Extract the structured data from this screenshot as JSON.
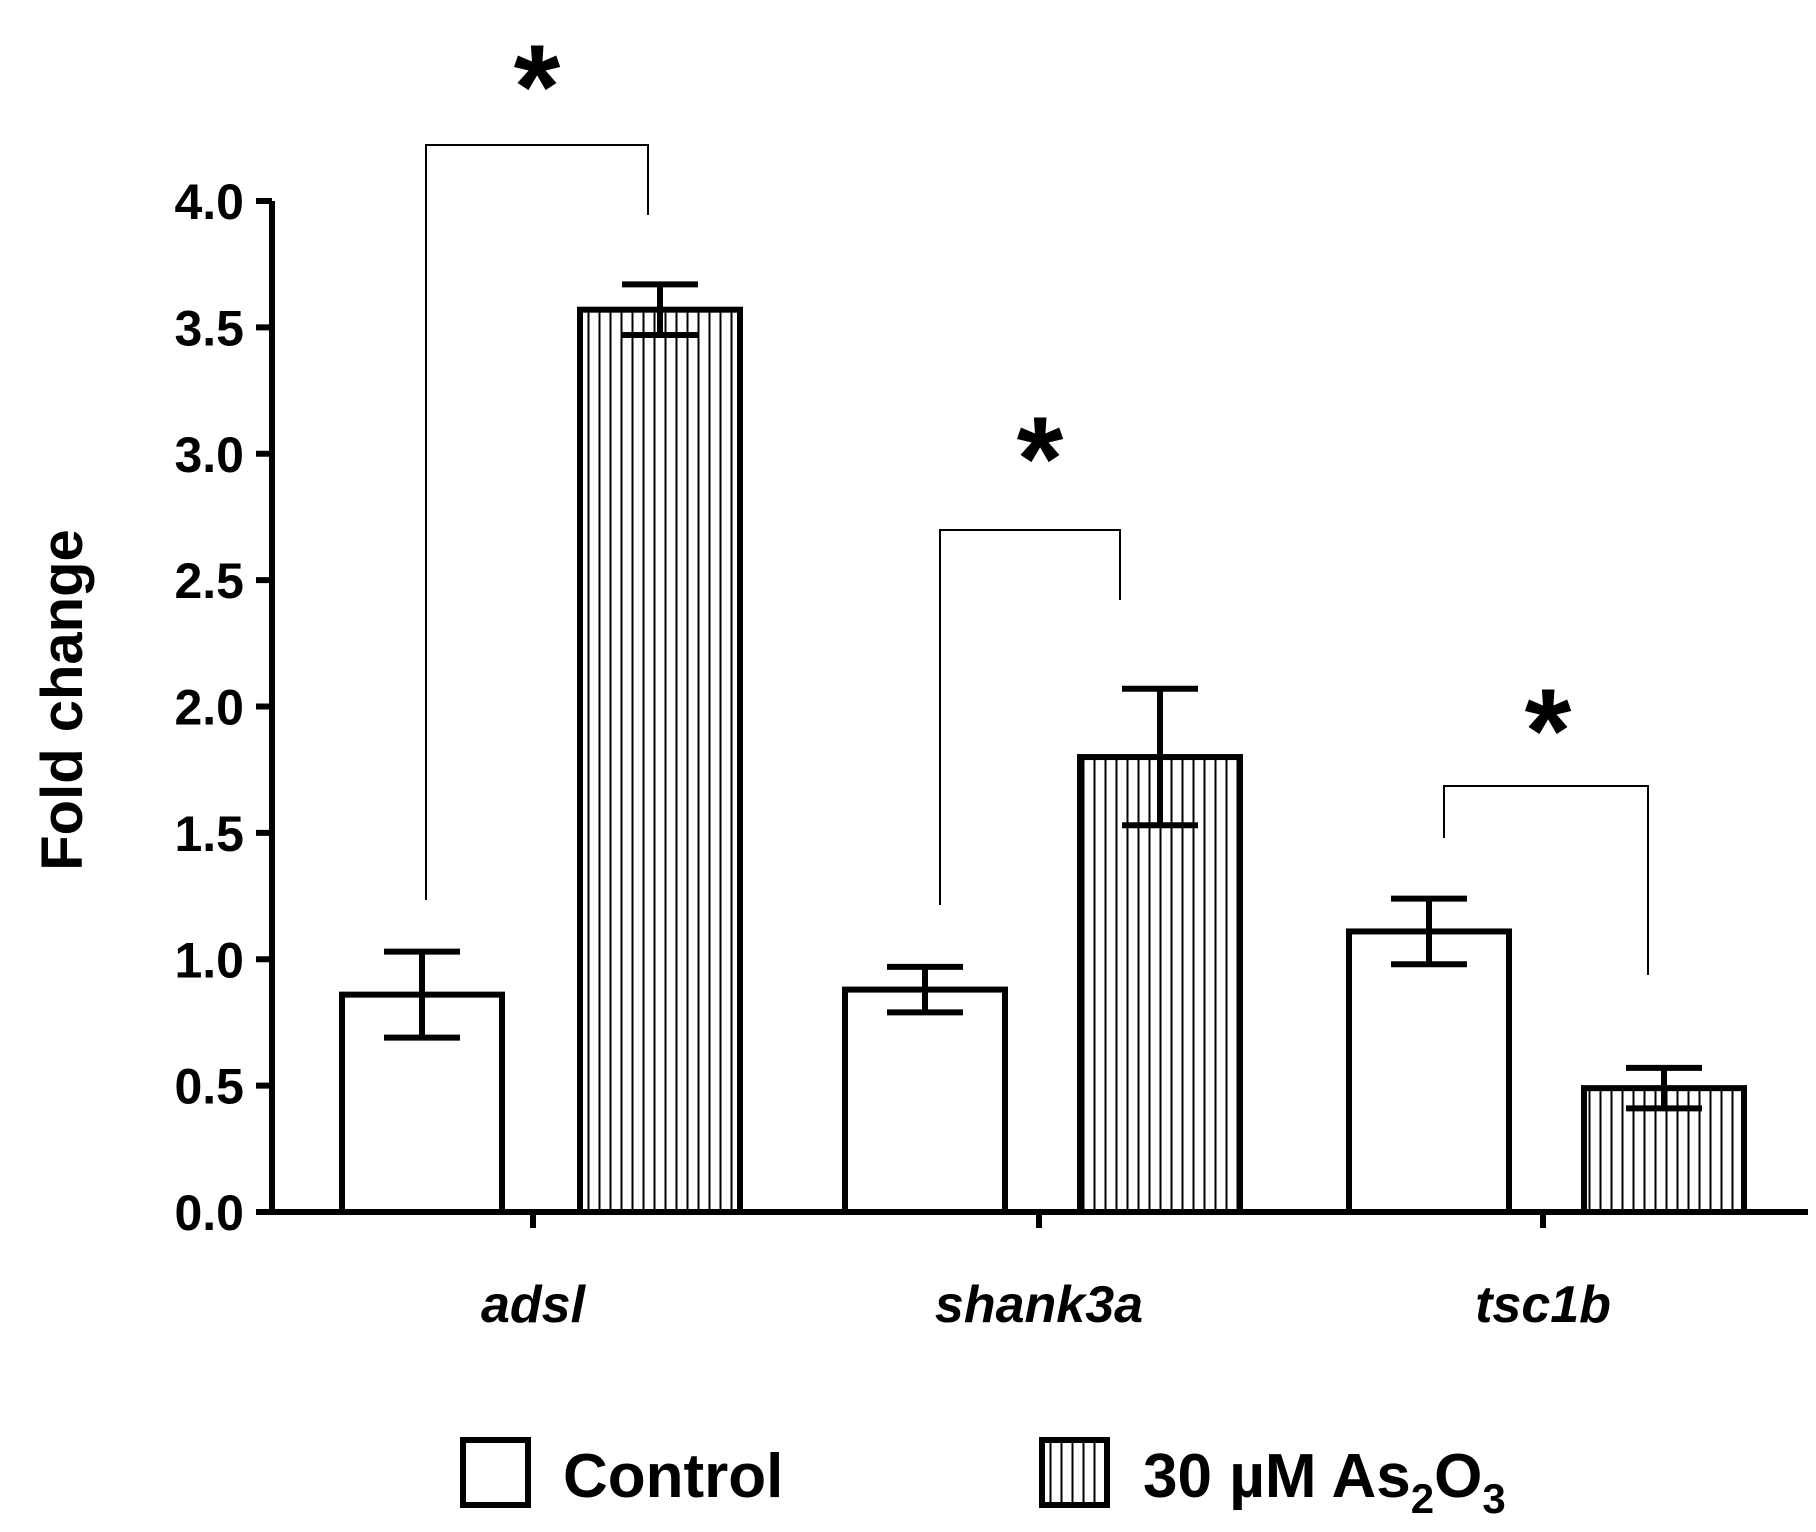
{
  "chart_data": {
    "type": "bar",
    "title": "",
    "xlabel": "",
    "ylabel": "Fold change",
    "ylim": [
      0,
      4.0
    ],
    "yticks": [
      "0.0",
      "0.5",
      "1.0",
      "1.5",
      "2.0",
      "2.5",
      "3.0",
      "3.5",
      "4.0"
    ],
    "categories": [
      "adsl",
      "shank3a",
      "tsc1b"
    ],
    "series": [
      {
        "name": "Control",
        "pattern": "open",
        "values": [
          0.86,
          0.88,
          1.11
        ],
        "errors": [
          0.17,
          0.09,
          0.13
        ]
      },
      {
        "name": "30 µM As₂O₃",
        "pattern": "vertical-stripes",
        "values": [
          3.57,
          1.8,
          0.49
        ],
        "errors": [
          0.1,
          0.27,
          0.08
        ]
      }
    ],
    "significance": [
      {
        "category": "adsl",
        "label": "*"
      },
      {
        "category": "shank3a",
        "label": "*"
      },
      {
        "category": "tsc1b",
        "label": "*"
      }
    ],
    "legend": {
      "position": "bottom",
      "items": [
        {
          "text": "Control"
        },
        {
          "text_main": "30 µM As",
          "sub1": "2",
          "mid": "O",
          "sub2": "3"
        }
      ]
    }
  },
  "colors": {
    "ink": "#000000",
    "background": "#ffffff"
  }
}
